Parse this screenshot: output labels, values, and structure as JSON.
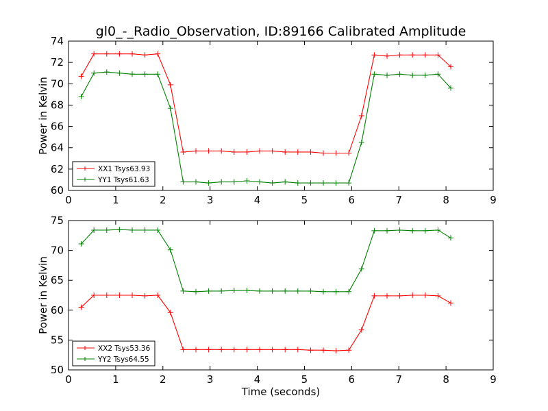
{
  "chart_data": [
    {
      "type": "line",
      "title": "gl0_-_Radio_Observation, ID:89166 Calibrated Amplitude",
      "xlabel": "",
      "ylabel": "Power in Kelvin",
      "xlim": [
        0,
        9
      ],
      "ylim": [
        60,
        74
      ],
      "xticks": [
        "0",
        "1",
        "2",
        "3",
        "4",
        "5",
        "6",
        "7",
        "8",
        "9"
      ],
      "yticks": [
        "60",
        "62",
        "64",
        "66",
        "68",
        "70",
        "72",
        "74"
      ],
      "legend_position": "lower-left",
      "x": [
        0.27,
        0.54,
        0.81,
        1.08,
        1.35,
        1.62,
        1.89,
        2.16,
        2.43,
        2.7,
        2.97,
        3.24,
        3.51,
        3.78,
        4.05,
        4.32,
        4.59,
        4.86,
        5.13,
        5.4,
        5.67,
        5.94,
        6.21,
        6.48,
        6.75,
        7.02,
        7.29,
        7.56,
        7.83,
        8.1
      ],
      "series": [
        {
          "name": "XX1 Tsys63.93",
          "color": "#ff0000",
          "values": [
            70.7,
            72.8,
            72.8,
            72.8,
            72.8,
            72.7,
            72.8,
            69.9,
            63.6,
            63.7,
            63.7,
            63.7,
            63.6,
            63.6,
            63.7,
            63.7,
            63.6,
            63.6,
            63.6,
            63.5,
            63.5,
            63.5,
            67.0,
            72.7,
            72.6,
            72.7,
            72.7,
            72.7,
            72.7,
            71.6
          ]
        },
        {
          "name": "YY1 Tsys61.63",
          "color": "#008000",
          "values": [
            68.8,
            71.0,
            71.1,
            71.0,
            70.9,
            70.9,
            70.9,
            67.7,
            60.8,
            60.8,
            60.7,
            60.8,
            60.8,
            60.9,
            60.8,
            60.7,
            60.8,
            60.7,
            60.7,
            60.7,
            60.7,
            60.7,
            64.5,
            70.9,
            70.8,
            70.9,
            70.8,
            70.8,
            70.9,
            69.6
          ]
        }
      ]
    },
    {
      "type": "line",
      "title": "",
      "xlabel": "Time (seconds)",
      "ylabel": "Power in Kelvin",
      "xlim": [
        0,
        9
      ],
      "ylim": [
        50,
        75
      ],
      "xticks": [
        "0",
        "1",
        "2",
        "3",
        "4",
        "5",
        "6",
        "7",
        "8",
        "9"
      ],
      "yticks": [
        "50",
        "55",
        "60",
        "65",
        "70",
        "75"
      ],
      "legend_position": "lower-left",
      "x": [
        0.27,
        0.54,
        0.81,
        1.08,
        1.35,
        1.62,
        1.89,
        2.16,
        2.43,
        2.7,
        2.97,
        3.24,
        3.51,
        3.78,
        4.05,
        4.32,
        4.59,
        4.86,
        5.13,
        5.4,
        5.67,
        5.94,
        6.21,
        6.48,
        6.75,
        7.02,
        7.29,
        7.56,
        7.83,
        8.1
      ],
      "series": [
        {
          "name": "XX2 Tsys53.36",
          "color": "#ff0000",
          "values": [
            60.5,
            62.5,
            62.5,
            62.5,
            62.5,
            62.4,
            62.5,
            59.6,
            53.4,
            53.4,
            53.4,
            53.4,
            53.4,
            53.4,
            53.4,
            53.4,
            53.4,
            53.4,
            53.3,
            53.3,
            53.2,
            53.3,
            56.7,
            62.4,
            62.4,
            62.4,
            62.5,
            62.5,
            62.4,
            61.2
          ]
        },
        {
          "name": "YY2 Tsys64.55",
          "color": "#008000",
          "values": [
            71.1,
            73.4,
            73.4,
            73.5,
            73.4,
            73.4,
            73.4,
            70.1,
            63.2,
            63.1,
            63.2,
            63.2,
            63.3,
            63.3,
            63.2,
            63.2,
            63.2,
            63.2,
            63.2,
            63.1,
            63.1,
            63.1,
            66.9,
            73.3,
            73.3,
            73.4,
            73.3,
            73.3,
            73.4,
            72.1
          ]
        }
      ]
    }
  ]
}
